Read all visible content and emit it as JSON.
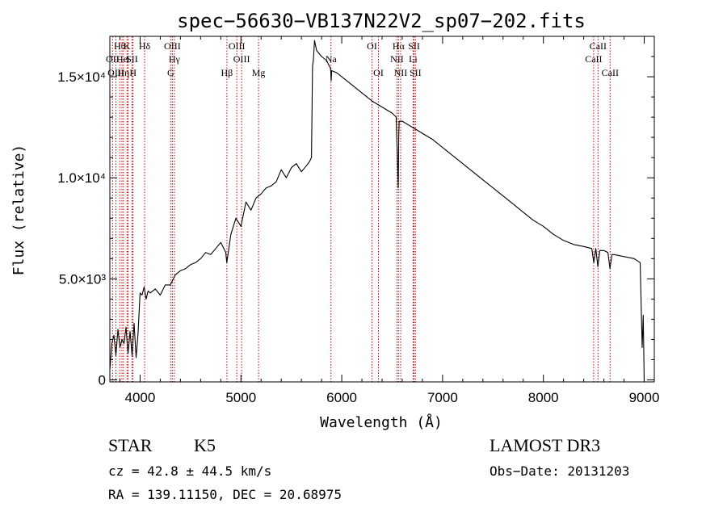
{
  "chart_data": {
    "type": "line",
    "title": "spec−56630−VB137N22V2_sp07−202.fits",
    "xlabel": "Wavelength (Å)",
    "ylabel": "Flux (relative)",
    "xlim": [
      3700,
      9100
    ],
    "ylim": [
      -100,
      17000
    ],
    "x_ticks": [
      4000,
      5000,
      6000,
      7000,
      8000,
      9000
    ],
    "x_tick_labels": [
      "4000",
      "5000",
      "6000",
      "7000",
      "8000",
      "9000"
    ],
    "y_ticks": [
      0,
      5000,
      10000,
      15000
    ],
    "y_tick_labels": [
      "0",
      "5.0×10³",
      "1.0×10⁴",
      "1.5×10⁴"
    ],
    "series": [
      {
        "name": "flux",
        "x": [
          3700,
          3720,
          3740,
          3760,
          3780,
          3800,
          3820,
          3840,
          3860,
          3880,
          3900,
          3920,
          3940,
          3960,
          3980,
          4000,
          4020,
          4040,
          4060,
          4080,
          4100,
          4150,
          4200,
          4250,
          4300,
          4350,
          4400,
          4450,
          4500,
          4550,
          4600,
          4650,
          4700,
          4750,
          4800,
          4850,
          4860,
          4900,
          4950,
          5000,
          5050,
          5100,
          5150,
          5200,
          5250,
          5300,
          5350,
          5400,
          5450,
          5500,
          5550,
          5600,
          5650,
          5680,
          5700,
          5710,
          5720,
          5730,
          5750,
          5800,
          5850,
          5890,
          5895,
          5900,
          5950,
          6000,
          6100,
          6200,
          6300,
          6400,
          6500,
          6540,
          6560,
          6565,
          6570,
          6600,
          6700,
          6800,
          6900,
          7000,
          7100,
          7200,
          7300,
          7400,
          7500,
          7600,
          7700,
          7800,
          7900,
          8000,
          8100,
          8200,
          8300,
          8400,
          8480,
          8500,
          8520,
          8540,
          8560,
          8600,
          8640,
          8660,
          8680,
          8700,
          8800,
          8900,
          8960,
          8980,
          8990,
          9000
        ],
        "y": [
          500,
          1800,
          2200,
          1200,
          2500,
          1600,
          2000,
          1800,
          2600,
          1300,
          2400,
          1200,
          2800,
          1100,
          2300,
          4300,
          4200,
          4600,
          4000,
          4400,
          4300,
          4500,
          4200,
          4700,
          4700,
          5200,
          5400,
          5500,
          5700,
          5800,
          6000,
          6300,
          6200,
          6500,
          6800,
          6300,
          5800,
          7200,
          8000,
          7600,
          8800,
          8400,
          9000,
          9200,
          9500,
          9600,
          9800,
          10400,
          10000,
          10500,
          10700,
          10300,
          10600,
          10800,
          11000,
          15500,
          15900,
          16800,
          16300,
          16000,
          15800,
          15400,
          14800,
          15300,
          15200,
          15000,
          14600,
          14200,
          13800,
          13500,
          13200,
          13000,
          9500,
          12000,
          12800,
          12800,
          12500,
          12200,
          11900,
          11500,
          11100,
          10700,
          10300,
          9900,
          9500,
          9100,
          8700,
          8300,
          7900,
          7600,
          7200,
          6900,
          6700,
          6600,
          6500,
          5800,
          6500,
          5600,
          6400,
          6400,
          6300,
          5500,
          6200,
          6200,
          6100,
          6000,
          5800,
          1600,
          3200,
          -100
        ]
      }
    ],
    "emission_lines": [
      {
        "label": "Hθ",
        "wavelength": 3798,
        "row": 1
      },
      {
        "label": "OII",
        "wavelength": 3727,
        "row": 2
      },
      {
        "label": "OIII",
        "wavelength": 3760,
        "row": 3
      },
      {
        "label": "He",
        "wavelength": 3820,
        "row": 2
      },
      {
        "label": "Hη",
        "wavelength": 3835,
        "row": 3
      },
      {
        "label": "K",
        "wavelength": 3870,
        "row": 1
      },
      {
        "label": "I",
        "wavelength": 3880,
        "row": 2
      },
      {
        "label": "SII",
        "wavelength": 3920,
        "row": 2
      },
      {
        "label": "H",
        "wavelength": 3930,
        "row": 3
      },
      {
        "label": "Hδ",
        "wavelength": 4045,
        "row": 1
      },
      {
        "label": "OIII",
        "wavelength": 4320,
        "row": 1
      },
      {
        "label": "Hγ",
        "wavelength": 4340,
        "row": 2
      },
      {
        "label": "G",
        "wavelength": 4304,
        "row": 3
      },
      {
        "label": "Hβ",
        "wavelength": 4861,
        "row": 3
      },
      {
        "label": "OIII",
        "wavelength": 4959,
        "row": 1
      },
      {
        "label": "OIII",
        "wavelength": 5007,
        "row": 2
      },
      {
        "label": "Mg",
        "wavelength": 5175,
        "row": 3
      },
      {
        "label": "Na",
        "wavelength": 5893,
        "row": 2
      },
      {
        "label": "OI",
        "wavelength": 6300,
        "row": 1
      },
      {
        "label": "OI",
        "wavelength": 6364,
        "row": 3
      },
      {
        "label": "Hα",
        "wavelength": 6563,
        "row": 1
      },
      {
        "label": "NII",
        "wavelength": 6548,
        "row": 2
      },
      {
        "label": "NII",
        "wavelength": 6584,
        "row": 3
      },
      {
        "label": "SII",
        "wavelength": 6717,
        "row": 1
      },
      {
        "label": "Li",
        "wavelength": 6708,
        "row": 2
      },
      {
        "label": "SII",
        "wavelength": 6731,
        "row": 3
      },
      {
        "label": "CaII",
        "wavelength": 8542,
        "row": 1
      },
      {
        "label": "CaII",
        "wavelength": 8498,
        "row": 2
      },
      {
        "label": "CaII",
        "wavelength": 8662,
        "row": 3
      }
    ],
    "colors": {
      "spectrum": "#000000",
      "lines": "#cc0000"
    }
  },
  "info": {
    "class": "STAR",
    "subclass": "K5",
    "survey": "LAMOST DR3",
    "cz": "cz = 42.8 ± 44.5 km/s",
    "obs_date": "Obs−Date: 20131203",
    "coords": "RA = 139.11150, DEC =  20.68975"
  }
}
